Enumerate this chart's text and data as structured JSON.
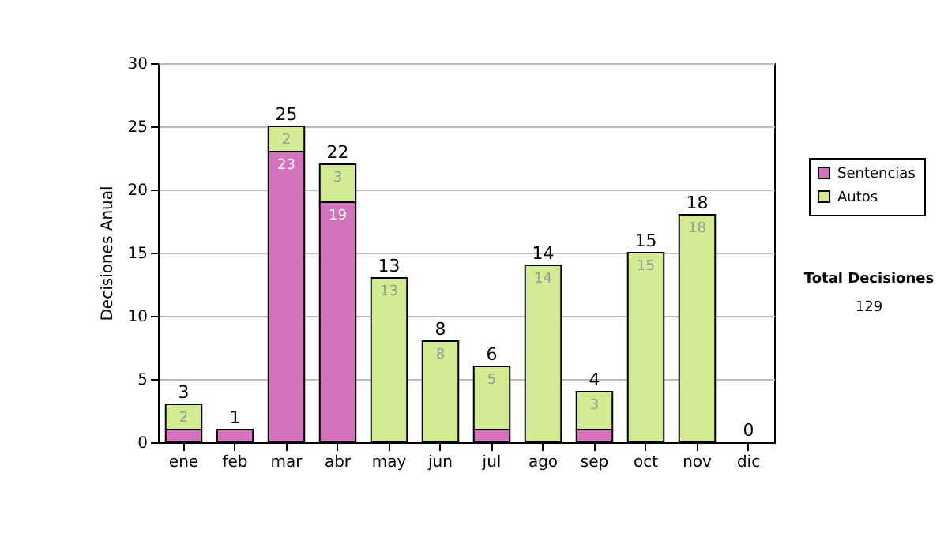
{
  "chart_data": {
    "type": "bar",
    "stacked": true,
    "ylabel": "Decisiones Anual",
    "categories": [
      "ene",
      "feb",
      "mar",
      "abr",
      "may",
      "jun",
      "jul",
      "ago",
      "sep",
      "oct",
      "nov",
      "dic"
    ],
    "series": [
      {
        "name": "Sentencias",
        "color": "#d372bd",
        "values": [
          1,
          1,
          23,
          19,
          0,
          0,
          1,
          0,
          1,
          0,
          0,
          0
        ],
        "value_labels": [
          null,
          null,
          "23",
          "19",
          null,
          null,
          null,
          null,
          null,
          null,
          null,
          null
        ]
      },
      {
        "name": "Autos",
        "color": "#d3eb92",
        "values": [
          2,
          0,
          2,
          3,
          13,
          8,
          5,
          14,
          3,
          15,
          18,
          0
        ],
        "value_labels": [
          "2",
          null,
          "2",
          "3",
          "13",
          "8",
          "5",
          "14",
          "3",
          "15",
          "18",
          null
        ]
      }
    ],
    "totals": [
      "3",
      "1",
      "25",
      "22",
      "13",
      "8",
      "6",
      "14",
      "4",
      "15",
      "18",
      "0"
    ],
    "ylim": [
      0,
      30
    ],
    "yticks": [
      0,
      5,
      10,
      15,
      20,
      25,
      30
    ],
    "grid": "y",
    "legend": "right",
    "annotations": [
      "Total Decisiones",
      "129"
    ]
  }
}
